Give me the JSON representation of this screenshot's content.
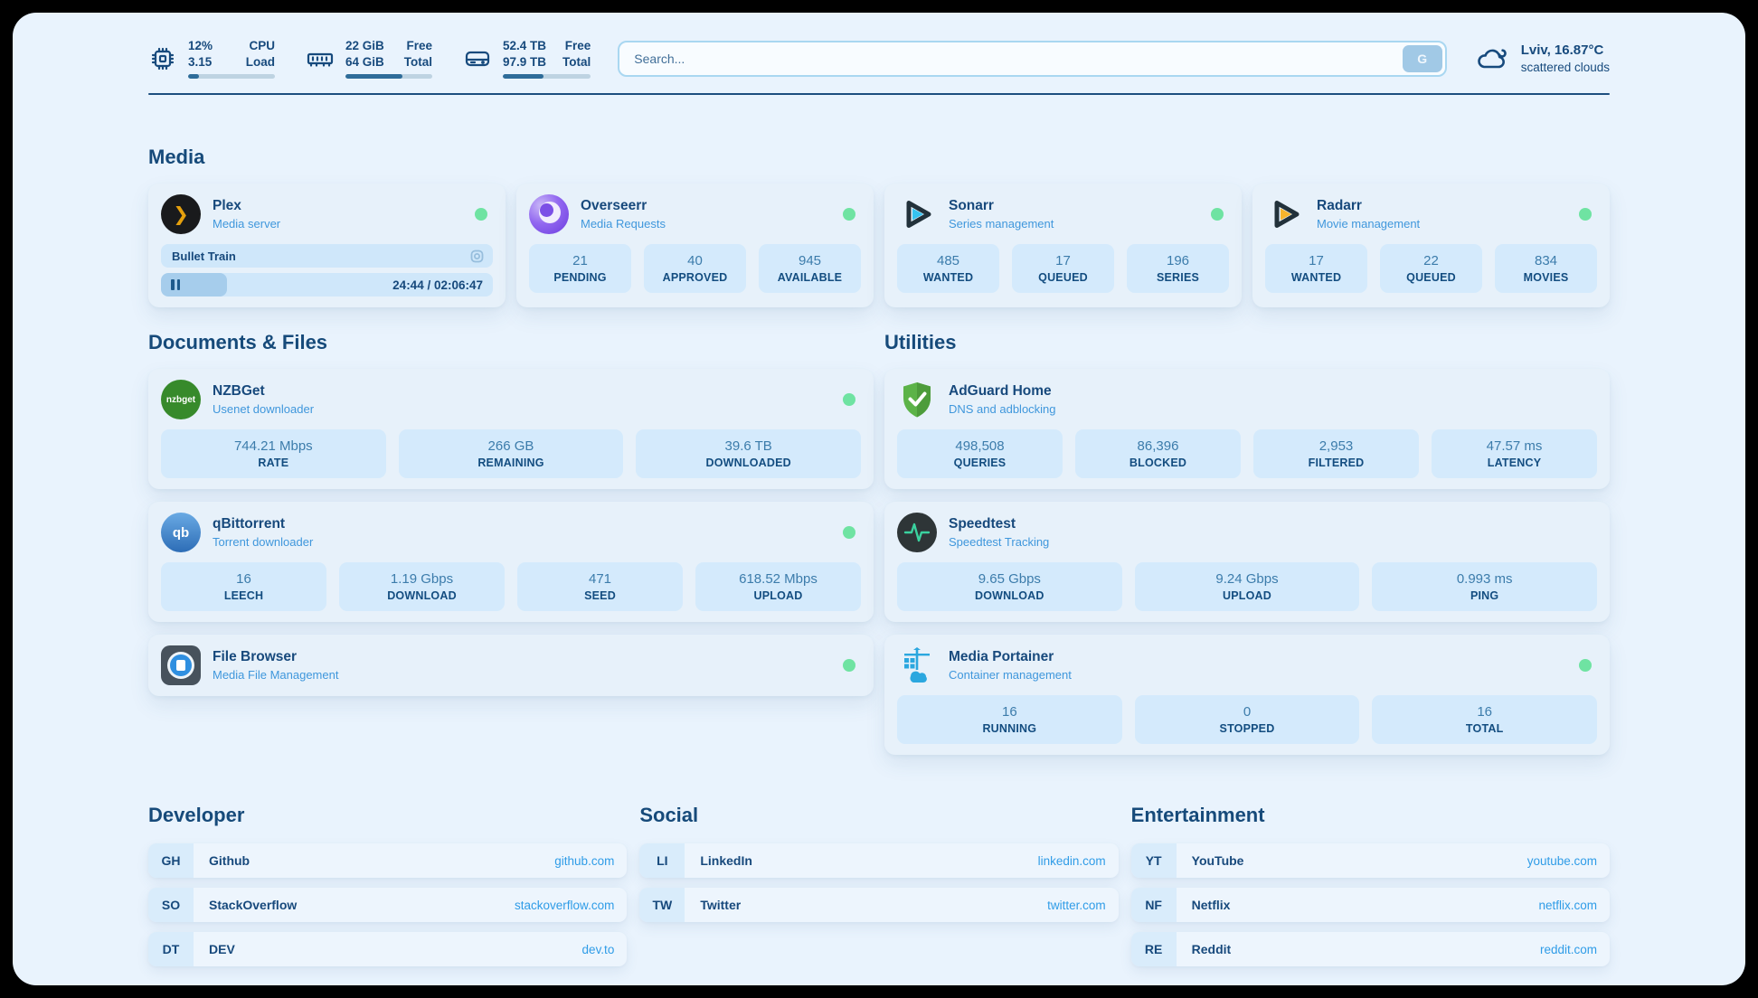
{
  "header": {
    "stats": [
      {
        "icon": "cpu-icon",
        "values": [
          "12%",
          "3.15"
        ],
        "labels": [
          "CPU",
          "Load"
        ],
        "progress": "12%"
      },
      {
        "icon": "ram-icon",
        "values": [
          "22 GiB",
          "64 GiB"
        ],
        "labels": [
          "Free",
          "Total"
        ],
        "progress": "66%"
      },
      {
        "icon": "disk-icon",
        "values": [
          "52.4 TB",
          "97.9 TB"
        ],
        "labels": [
          "Free",
          "Total"
        ],
        "progress": "46%"
      }
    ],
    "search": {
      "placeholder": "Search...",
      "button": "G"
    },
    "weather": {
      "line1": "Lviv, 16.87°C",
      "line2": "scattered clouds"
    }
  },
  "sections": {
    "media": {
      "title": "Media"
    },
    "documents": {
      "title": "Documents & Files"
    },
    "utilities": {
      "title": "Utilities"
    }
  },
  "apps": {
    "plex": {
      "name": "Plex",
      "subtitle": "Media server",
      "online": true,
      "player": {
        "title": "Bullet Train",
        "time": "24:44 / 02:06:47",
        "progress": "20%"
      }
    },
    "overseerr": {
      "name": "Overseerr",
      "subtitle": "Media Requests",
      "online": true,
      "stats": [
        {
          "value": "21",
          "label": "PENDING"
        },
        {
          "value": "40",
          "label": "APPROVED"
        },
        {
          "value": "945",
          "label": "AVAILABLE"
        }
      ]
    },
    "sonarr": {
      "name": "Sonarr",
      "subtitle": "Series management",
      "online": true,
      "stats": [
        {
          "value": "485",
          "label": "WANTED"
        },
        {
          "value": "17",
          "label": "QUEUED"
        },
        {
          "value": "196",
          "label": "SERIES"
        }
      ]
    },
    "radarr": {
      "name": "Radarr",
      "subtitle": "Movie management",
      "online": true,
      "stats": [
        {
          "value": "17",
          "label": "WANTED"
        },
        {
          "value": "22",
          "label": "QUEUED"
        },
        {
          "value": "834",
          "label": "MOVIES"
        }
      ]
    },
    "nzbget": {
      "name": "NZBGet",
      "subtitle": "Usenet downloader",
      "online": true,
      "logo": "nzbget",
      "stats": [
        {
          "value": "744.21 Mbps",
          "label": "RATE"
        },
        {
          "value": "266 GB",
          "label": "REMAINING"
        },
        {
          "value": "39.6 TB",
          "label": "DOWNLOADED"
        }
      ]
    },
    "qbittorrent": {
      "name": "qBittorrent",
      "subtitle": "Torrent downloader",
      "online": true,
      "logo": "qb",
      "stats": [
        {
          "value": "16",
          "label": "LEECH"
        },
        {
          "value": "1.19 Gbps",
          "label": "DOWNLOAD"
        },
        {
          "value": "471",
          "label": "SEED"
        },
        {
          "value": "618.52 Mbps",
          "label": "UPLOAD"
        }
      ]
    },
    "filebrowser": {
      "name": "File Browser",
      "subtitle": "Media File Management",
      "online": true
    },
    "adguard": {
      "name": "AdGuard Home",
      "subtitle": "DNS and adblocking",
      "stats": [
        {
          "value": "498,508",
          "label": "QUERIES"
        },
        {
          "value": "86,396",
          "label": "BLOCKED"
        },
        {
          "value": "2,953",
          "label": "FILTERED"
        },
        {
          "value": "47.57 ms",
          "label": "LATENCY"
        }
      ]
    },
    "speedtest": {
      "name": "Speedtest",
      "subtitle": "Speedtest Tracking",
      "stats": [
        {
          "value": "9.65 Gbps",
          "label": "DOWNLOAD"
        },
        {
          "value": "9.24 Gbps",
          "label": "UPLOAD"
        },
        {
          "value": "0.993 ms",
          "label": "PING"
        }
      ]
    },
    "portainer": {
      "name": "Media Portainer",
      "subtitle": "Container management",
      "online": true,
      "stats": [
        {
          "value": "16",
          "label": "RUNNING"
        },
        {
          "value": "0",
          "label": "STOPPED"
        },
        {
          "value": "16",
          "label": "TOTAL"
        }
      ]
    }
  },
  "bookmarks": [
    {
      "title": "Developer",
      "items": [
        {
          "abbr": "GH",
          "name": "Github",
          "url": "github.com"
        },
        {
          "abbr": "SO",
          "name": "StackOverflow",
          "url": "stackoverflow.com"
        },
        {
          "abbr": "DT",
          "name": "DEV",
          "url": "dev.to"
        }
      ]
    },
    {
      "title": "Social",
      "items": [
        {
          "abbr": "LI",
          "name": "LinkedIn",
          "url": "linkedin.com"
        },
        {
          "abbr": "TW",
          "name": "Twitter",
          "url": "twitter.com"
        }
      ]
    },
    {
      "title": "Entertainment",
      "items": [
        {
          "abbr": "YT",
          "name": "YouTube",
          "url": "youtube.com"
        },
        {
          "abbr": "NF",
          "name": "Netflix",
          "url": "netflix.com"
        },
        {
          "abbr": "RE",
          "name": "Reddit",
          "url": "reddit.com"
        }
      ]
    }
  ],
  "colors": {
    "page": "#e9f3fd",
    "card": "#e7f1fa",
    "tile": "#d4eafc",
    "navy": "#174a7d",
    "subtitle_blue": "#3f97dc",
    "link_blue": "#2f9ce7",
    "status_green": "#6fe3a2",
    "bar_fill": "#2e6c99"
  }
}
